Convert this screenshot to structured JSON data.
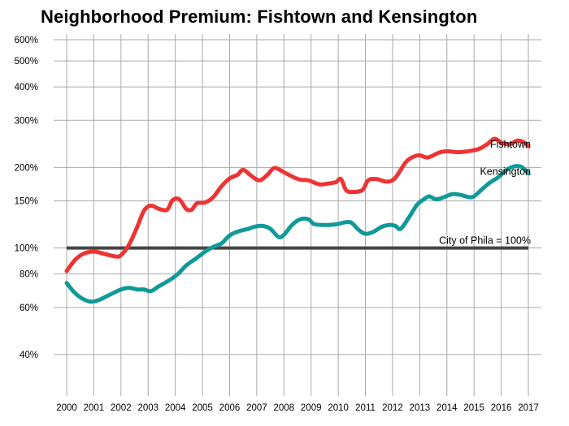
{
  "chart_data": {
    "type": "line",
    "title": "Neighborhood Premium: Fishtown and Kensington",
    "xlabel": "",
    "ylabel": "",
    "y_scale": "log",
    "xlim": [
      2000,
      2017
    ],
    "ylim": [
      0.28,
      6.3
    ],
    "grid": true,
    "x_ticks": [
      "2000",
      "2001",
      "2002",
      "2003",
      "2004",
      "2005",
      "2006",
      "2007",
      "2008",
      "2009",
      "2010",
      "2011",
      "2012",
      "2013",
      "2014",
      "2015",
      "2016",
      "2017"
    ],
    "y_ticks": [
      {
        "value": 0.4,
        "label": "40%"
      },
      {
        "value": 0.6,
        "label": "60%"
      },
      {
        "value": 0.8,
        "label": "80%"
      },
      {
        "value": 1.0,
        "label": "100%"
      },
      {
        "value": 1.5,
        "label": "150%"
      },
      {
        "value": 2.0,
        "label": "200%"
      },
      {
        "value": 3.0,
        "label": "300%"
      },
      {
        "value": 4.0,
        "label": "400%"
      },
      {
        "value": 5.0,
        "label": "500%"
      },
      {
        "value": 6.0,
        "label": "600%"
      }
    ],
    "reference_line": {
      "value": 1.0,
      "label": "City of Phila = 100%",
      "color": "#444444"
    },
    "series": [
      {
        "name": "Fishtown",
        "color": "#ee3333",
        "points": [
          [
            2000.0,
            0.82
          ],
          [
            2000.3,
            0.9
          ],
          [
            2000.6,
            0.95
          ],
          [
            2001.0,
            0.97
          ],
          [
            2001.4,
            0.95
          ],
          [
            2001.8,
            0.93
          ],
          [
            2002.0,
            0.94
          ],
          [
            2002.3,
            1.03
          ],
          [
            2002.6,
            1.2
          ],
          [
            2002.85,
            1.38
          ],
          [
            2003.1,
            1.44
          ],
          [
            2003.4,
            1.4
          ],
          [
            2003.7,
            1.39
          ],
          [
            2003.9,
            1.51
          ],
          [
            2004.15,
            1.52
          ],
          [
            2004.4,
            1.4
          ],
          [
            2004.6,
            1.39
          ],
          [
            2004.8,
            1.47
          ],
          [
            2005.1,
            1.48
          ],
          [
            2005.4,
            1.55
          ],
          [
            2005.7,
            1.7
          ],
          [
            2006.0,
            1.82
          ],
          [
            2006.3,
            1.88
          ],
          [
            2006.5,
            1.96
          ],
          [
            2006.8,
            1.86
          ],
          [
            2007.1,
            1.79
          ],
          [
            2007.4,
            1.88
          ],
          [
            2007.65,
            1.99
          ],
          [
            2008.0,
            1.92
          ],
          [
            2008.3,
            1.85
          ],
          [
            2008.6,
            1.8
          ],
          [
            2008.9,
            1.79
          ],
          [
            2009.3,
            1.73
          ],
          [
            2009.6,
            1.74
          ],
          [
            2009.9,
            1.76
          ],
          [
            2010.1,
            1.81
          ],
          [
            2010.3,
            1.64
          ],
          [
            2010.6,
            1.62
          ],
          [
            2010.9,
            1.65
          ],
          [
            2011.1,
            1.79
          ],
          [
            2011.4,
            1.81
          ],
          [
            2011.8,
            1.77
          ],
          [
            2012.1,
            1.83
          ],
          [
            2012.5,
            2.1
          ],
          [
            2012.8,
            2.2
          ],
          [
            2013.0,
            2.22
          ],
          [
            2013.3,
            2.18
          ],
          [
            2013.7,
            2.27
          ],
          [
            2014.0,
            2.3
          ],
          [
            2014.4,
            2.28
          ],
          [
            2014.8,
            2.3
          ],
          [
            2015.2,
            2.35
          ],
          [
            2015.5,
            2.45
          ],
          [
            2015.75,
            2.56
          ],
          [
            2016.0,
            2.48
          ],
          [
            2016.3,
            2.44
          ],
          [
            2016.6,
            2.52
          ],
          [
            2016.85,
            2.48
          ],
          [
            2017.0,
            2.4
          ]
        ]
      },
      {
        "name": "Kensington",
        "color": "#119999",
        "points": [
          [
            2000.0,
            0.74
          ],
          [
            2000.3,
            0.68
          ],
          [
            2000.6,
            0.645
          ],
          [
            2000.9,
            0.63
          ],
          [
            2001.2,
            0.64
          ],
          [
            2001.6,
            0.67
          ],
          [
            2002.0,
            0.7
          ],
          [
            2002.3,
            0.71
          ],
          [
            2002.6,
            0.7
          ],
          [
            2002.85,
            0.7
          ],
          [
            2003.1,
            0.69
          ],
          [
            2003.4,
            0.72
          ],
          [
            2003.8,
            0.76
          ],
          [
            2004.1,
            0.8
          ],
          [
            2004.4,
            0.86
          ],
          [
            2004.8,
            0.92
          ],
          [
            2005.1,
            0.97
          ],
          [
            2005.4,
            1.01
          ],
          [
            2005.7,
            1.04
          ],
          [
            2005.9,
            1.09
          ],
          [
            2006.1,
            1.13
          ],
          [
            2006.4,
            1.16
          ],
          [
            2006.7,
            1.18
          ],
          [
            2006.9,
            1.2
          ],
          [
            2007.2,
            1.21
          ],
          [
            2007.5,
            1.18
          ],
          [
            2007.8,
            1.1
          ],
          [
            2008.0,
            1.12
          ],
          [
            2008.3,
            1.22
          ],
          [
            2008.6,
            1.28
          ],
          [
            2008.9,
            1.28
          ],
          [
            2009.1,
            1.23
          ],
          [
            2009.4,
            1.22
          ],
          [
            2009.7,
            1.22
          ],
          [
            2010.0,
            1.23
          ],
          [
            2010.3,
            1.25
          ],
          [
            2010.5,
            1.24
          ],
          [
            2010.75,
            1.17
          ],
          [
            2011.0,
            1.13
          ],
          [
            2011.3,
            1.15
          ],
          [
            2011.6,
            1.2
          ],
          [
            2011.9,
            1.22
          ],
          [
            2012.1,
            1.21
          ],
          [
            2012.3,
            1.18
          ],
          [
            2012.6,
            1.3
          ],
          [
            2012.9,
            1.45
          ],
          [
            2013.15,
            1.52
          ],
          [
            2013.35,
            1.56
          ],
          [
            2013.6,
            1.52
          ],
          [
            2013.9,
            1.55
          ],
          [
            2014.2,
            1.59
          ],
          [
            2014.5,
            1.58
          ],
          [
            2014.8,
            1.55
          ],
          [
            2015.0,
            1.56
          ],
          [
            2015.3,
            1.66
          ],
          [
            2015.6,
            1.76
          ],
          [
            2015.9,
            1.84
          ],
          [
            2016.2,
            1.96
          ],
          [
            2016.5,
            2.02
          ],
          [
            2016.75,
            2.01
          ],
          [
            2017.0,
            1.9
          ]
        ]
      }
    ]
  }
}
